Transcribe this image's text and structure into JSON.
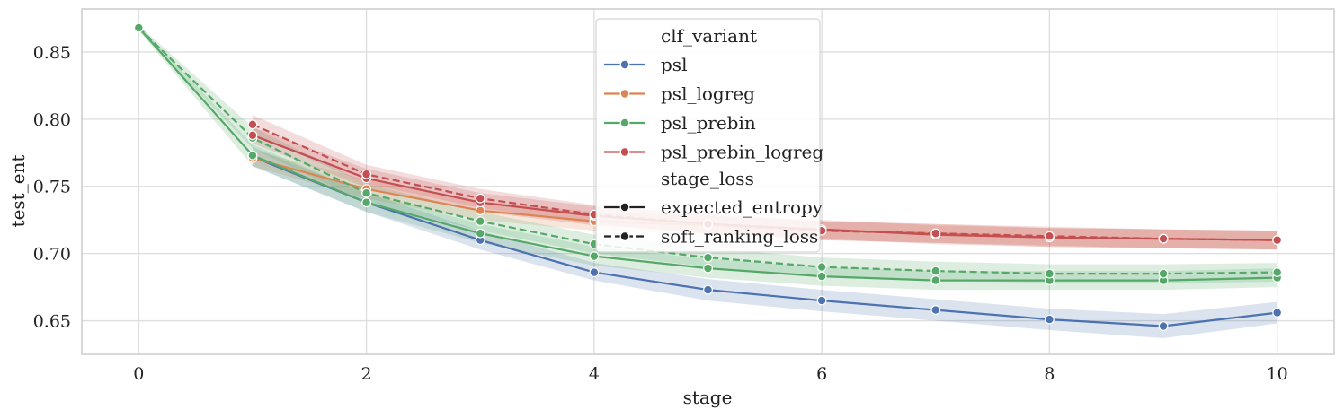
{
  "chart_data": {
    "type": "line",
    "xlabel": "stage",
    "ylabel": "test_ent",
    "xlim": [
      -0.5,
      10.5
    ],
    "ylim": [
      0.625,
      0.882
    ],
    "xticks": [
      0,
      2,
      4,
      6,
      8,
      10
    ],
    "xtick_labels": [
      "0",
      "2",
      "4",
      "6",
      "8",
      "10"
    ],
    "yticks": [
      0.65,
      0.7,
      0.75,
      0.8,
      0.85
    ],
    "ytick_labels": [
      "0.65",
      "0.70",
      "0.75",
      "0.80",
      "0.85"
    ],
    "grid": true,
    "legend": {
      "placement": "upper-center",
      "hue_title": "clf_variant",
      "style_title": "stage_loss",
      "hue_entries": [
        {
          "label": "psl",
          "color": "#4C72B0"
        },
        {
          "label": "psl_logreg",
          "color": "#DD8452"
        },
        {
          "label": "psl_prebin",
          "color": "#55A868"
        },
        {
          "label": "psl_prebin_logreg",
          "color": "#C44E52"
        }
      ],
      "style_entries": [
        {
          "label": "expected_entropy",
          "dash": "solid"
        },
        {
          "label": "soft_ranking_loss",
          "dash": "dashed"
        }
      ]
    },
    "series": [
      {
        "clf_variant": "psl",
        "stage_loss": "expected_entropy",
        "color": "#4C72B0",
        "dash": "solid",
        "x": [
          1,
          2,
          3,
          4,
          5,
          6,
          7,
          8,
          9,
          10
        ],
        "y": [
          0.772,
          0.738,
          0.71,
          0.686,
          0.673,
          0.665,
          0.658,
          0.651,
          0.646,
          0.656
        ],
        "ci_low": [
          0.765,
          0.731,
          0.703,
          0.68,
          0.665,
          0.657,
          0.65,
          0.643,
          0.637,
          0.648
        ],
        "ci_high": [
          0.779,
          0.745,
          0.717,
          0.693,
          0.681,
          0.673,
          0.666,
          0.659,
          0.655,
          0.664
        ]
      },
      {
        "clf_variant": "psl_logreg",
        "stage_loss": "expected_entropy",
        "color": "#DD8452",
        "dash": "solid",
        "x": [
          1,
          2,
          3,
          4,
          5,
          6,
          7,
          8,
          9,
          10
        ],
        "y": [
          0.771,
          0.748,
          0.732,
          0.724,
          0.721,
          0.717,
          0.715,
          0.712,
          0.711,
          0.71
        ],
        "ci_low": [
          0.765,
          0.741,
          0.725,
          0.717,
          0.714,
          0.71,
          0.708,
          0.705,
          0.704,
          0.703
        ],
        "ci_high": [
          0.777,
          0.755,
          0.739,
          0.731,
          0.728,
          0.724,
          0.722,
          0.719,
          0.718,
          0.717
        ]
      },
      {
        "clf_variant": "psl_prebin",
        "stage_loss": "expected_entropy",
        "color": "#55A868",
        "dash": "solid",
        "x": [
          0,
          1,
          2,
          3,
          4,
          5,
          6,
          7,
          8,
          9,
          10
        ],
        "y": [
          0.868,
          0.773,
          0.738,
          0.715,
          0.698,
          0.689,
          0.683,
          0.68,
          0.68,
          0.68,
          0.682
        ],
        "ci_low": [
          0.866,
          0.765,
          0.731,
          0.708,
          0.691,
          0.682,
          0.676,
          0.673,
          0.673,
          0.673,
          0.675
        ],
        "ci_high": [
          0.87,
          0.781,
          0.745,
          0.722,
          0.705,
          0.696,
          0.69,
          0.687,
          0.687,
          0.687,
          0.689
        ]
      },
      {
        "clf_variant": "psl_prebin",
        "stage_loss": "soft_ranking_loss",
        "color": "#55A868",
        "dash": "dashed",
        "x": [
          0,
          1,
          2,
          3,
          4,
          5,
          6,
          7,
          8,
          9,
          10
        ],
        "y": [
          0.868,
          0.786,
          0.745,
          0.724,
          0.707,
          0.697,
          0.69,
          0.687,
          0.685,
          0.685,
          0.686
        ],
        "ci_low": [
          0.866,
          0.778,
          0.738,
          0.717,
          0.7,
          0.69,
          0.683,
          0.68,
          0.678,
          0.678,
          0.679
        ],
        "ci_high": [
          0.87,
          0.794,
          0.752,
          0.731,
          0.714,
          0.704,
          0.697,
          0.694,
          0.692,
          0.692,
          0.693
        ]
      },
      {
        "clf_variant": "psl_prebin_logreg",
        "stage_loss": "expected_entropy",
        "color": "#C44E52",
        "dash": "solid",
        "x": [
          1,
          2,
          3,
          4,
          5,
          6,
          7,
          8,
          9,
          10
        ],
        "y": [
          0.788,
          0.756,
          0.738,
          0.728,
          0.722,
          0.718,
          0.714,
          0.712,
          0.711,
          0.71
        ],
        "ci_low": [
          0.782,
          0.749,
          0.731,
          0.721,
          0.715,
          0.711,
          0.707,
          0.705,
          0.704,
          0.703
        ],
        "ci_high": [
          0.794,
          0.763,
          0.745,
          0.735,
          0.729,
          0.725,
          0.721,
          0.719,
          0.718,
          0.717
        ]
      },
      {
        "clf_variant": "psl_prebin_logreg",
        "stage_loss": "soft_ranking_loss",
        "color": "#C44E52",
        "dash": "dashed",
        "x": [
          1,
          2,
          3,
          4,
          5,
          6,
          7,
          8,
          9,
          10
        ],
        "y": [
          0.796,
          0.759,
          0.741,
          0.729,
          0.722,
          0.717,
          0.715,
          0.713,
          0.711,
          0.71
        ],
        "ci_low": [
          0.789,
          0.752,
          0.734,
          0.722,
          0.715,
          0.71,
          0.708,
          0.706,
          0.704,
          0.703
        ],
        "ci_high": [
          0.803,
          0.766,
          0.748,
          0.736,
          0.729,
          0.724,
          0.722,
          0.72,
          0.718,
          0.717
        ]
      }
    ]
  }
}
